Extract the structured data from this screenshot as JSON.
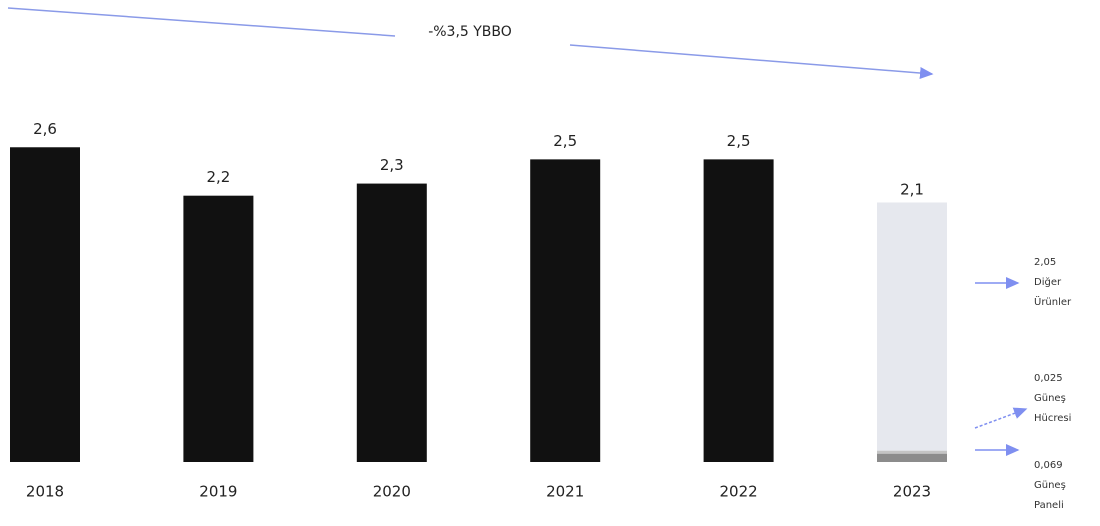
{
  "chart_data": {
    "type": "bar",
    "annotation": "-%3,5 YBBO",
    "categories": [
      "2018",
      "2019",
      "2020",
      "2021",
      "2022",
      "2023"
    ],
    "values": [
      2.6,
      2.2,
      2.3,
      2.5,
      2.5,
      2.1
    ],
    "value_labels": [
      "2,6",
      "2,2",
      "2,3",
      "2,5",
      "2,5",
      "2,1"
    ],
    "color": "#111111",
    "ylim": [
      0,
      3.8
    ],
    "breakdown": [
      {
        "name_lines": [
          "Güneş",
          "Paneli"
        ],
        "value": 0.069,
        "label": "0,069",
        "color": "#8c8c8c"
      },
      {
        "name_lines": [
          "Güneş",
          "Hücresi"
        ],
        "value": 0.025,
        "label": "0,025",
        "color": "#c4c4c4"
      },
      {
        "name_lines": [
          "Diğer",
          "Ürünler"
        ],
        "value": 2.05,
        "label": "2,05",
        "color": "#e6e8ee"
      }
    ]
  }
}
